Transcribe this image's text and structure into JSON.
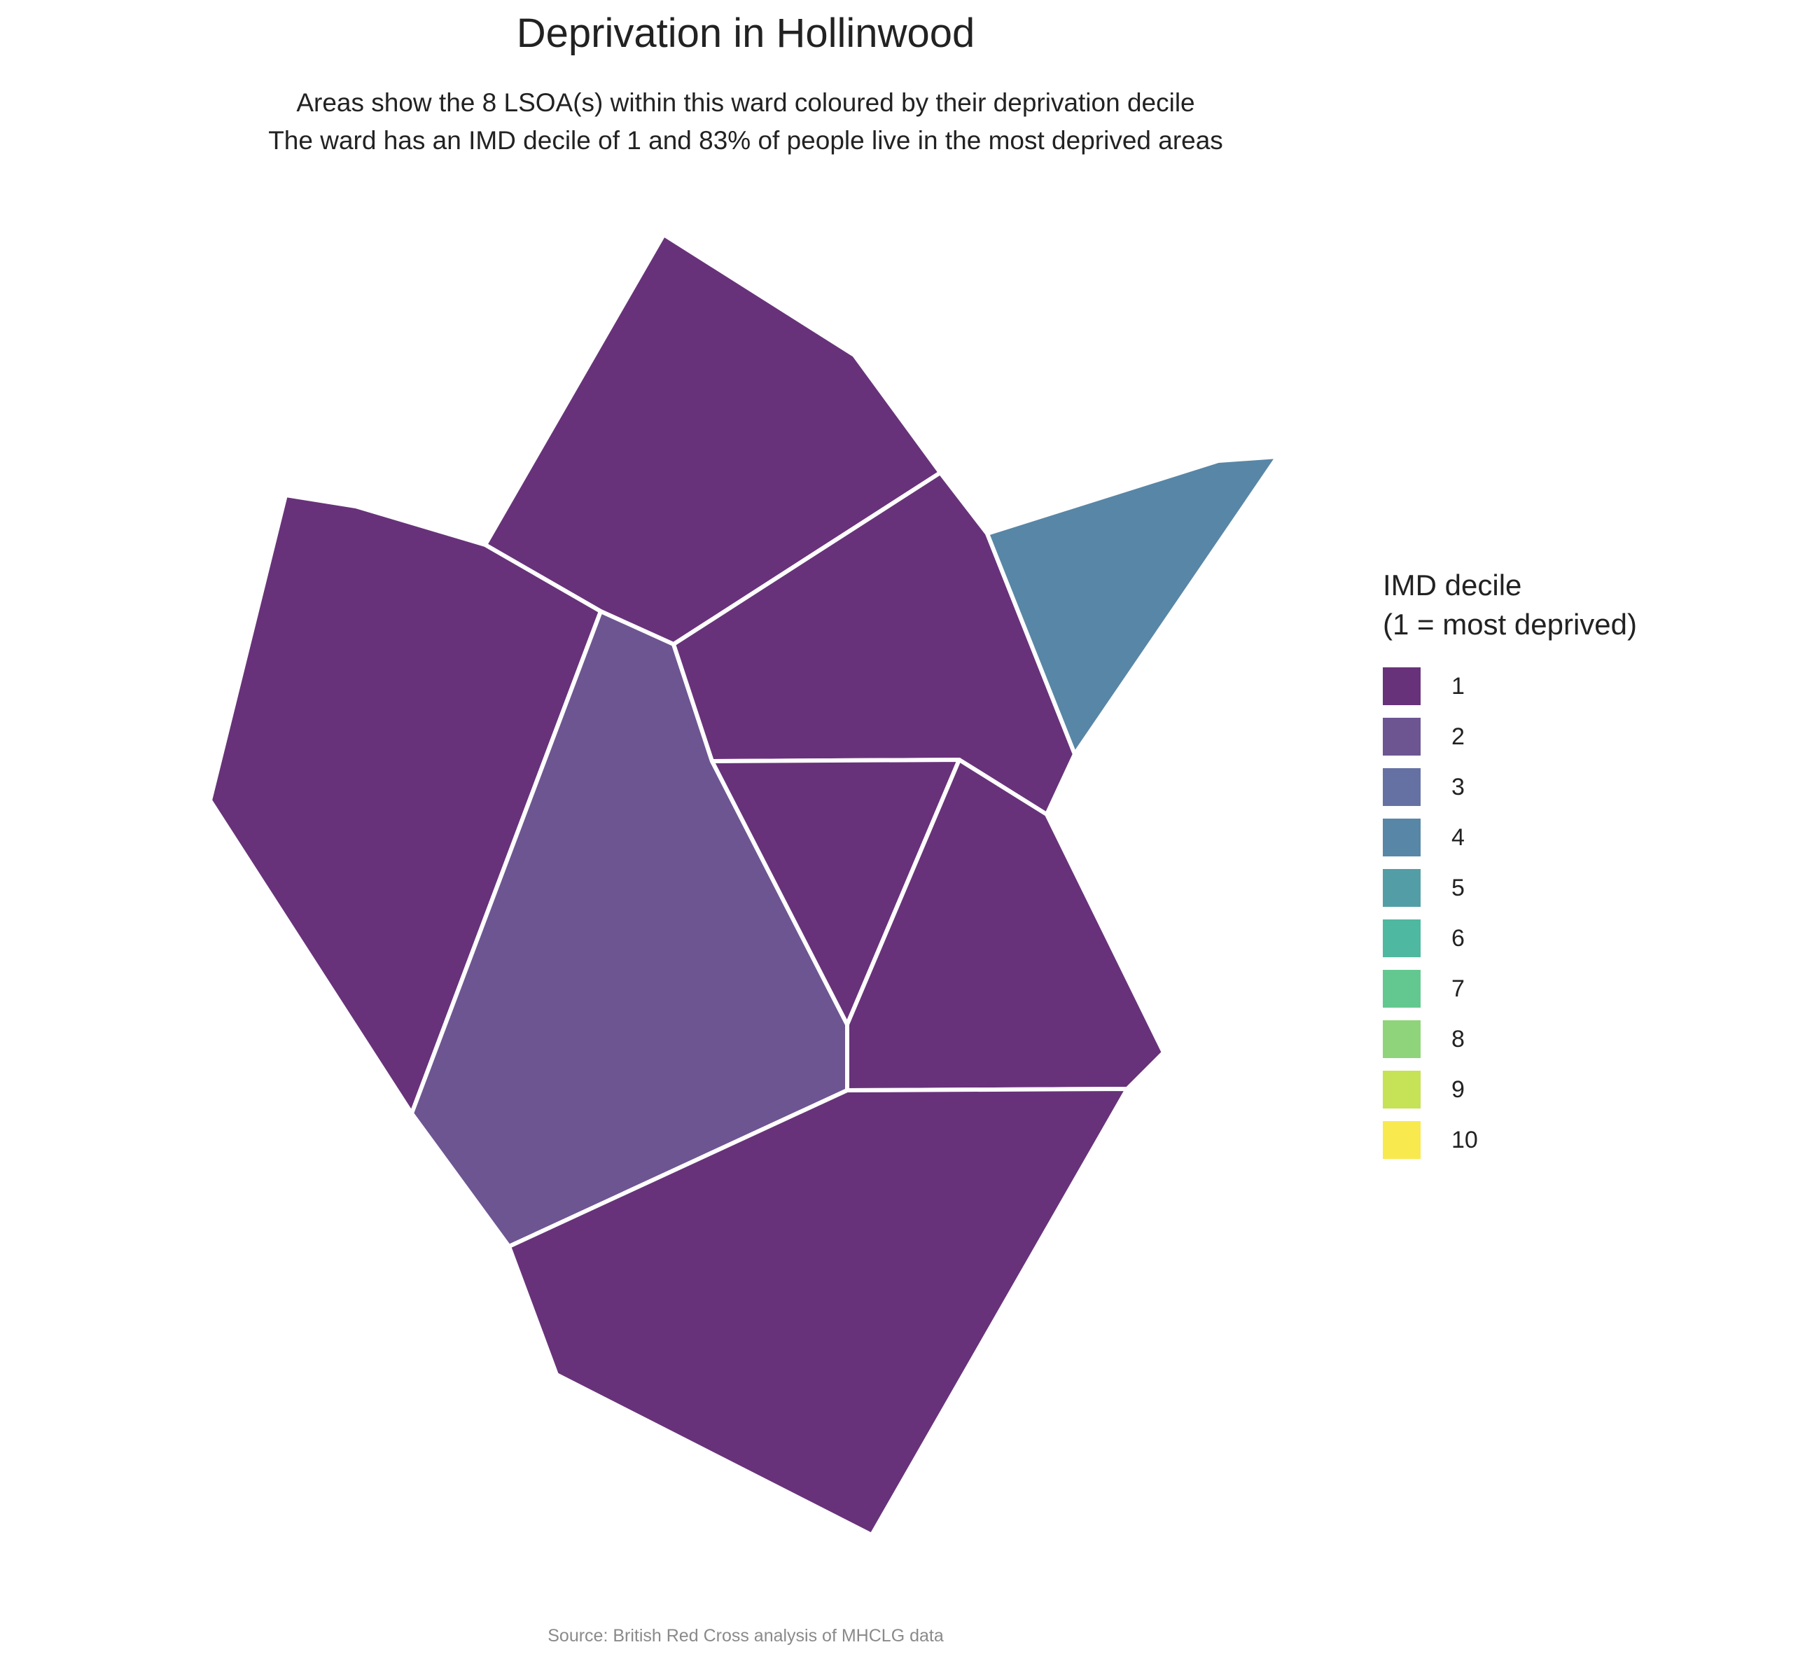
{
  "title": "Deprivation in Hollinwood",
  "subtitle": {
    "line1": "Areas show the 8 LSOA(s) within this ward coloured by their deprivation decile",
    "line2": "The ward has an IMD decile of 1 and 83% of people live in the most deprived areas"
  },
  "legend": {
    "title_line1": "IMD decile",
    "title_line2": "(1 = most deprived)",
    "items": [
      {
        "label": "1",
        "color": "#68327a"
      },
      {
        "label": "2",
        "color": "#6d5592"
      },
      {
        "label": "3",
        "color": "#6671a3"
      },
      {
        "label": "4",
        "color": "#5886a6"
      },
      {
        "label": "5",
        "color": "#539ea6"
      },
      {
        "label": "6",
        "color": "#4fb8a0"
      },
      {
        "label": "7",
        "color": "#63c890"
      },
      {
        "label": "8",
        "color": "#8fd47a"
      },
      {
        "label": "9",
        "color": "#c6e256"
      },
      {
        "label": "10",
        "color": "#f8e94f"
      }
    ]
  },
  "map_data": {
    "ward": "Hollinwood",
    "lsoa_count": 8,
    "ward_imd_decile": 1,
    "percent_most_deprived": 83,
    "areas": [
      {
        "id": "north",
        "decile": 1
      },
      {
        "id": "west",
        "decile": 1
      },
      {
        "id": "centre-west",
        "decile": 2
      },
      {
        "id": "north-east",
        "decile": 1
      },
      {
        "id": "far-east",
        "decile": 4
      },
      {
        "id": "centre-triangle",
        "decile": 1
      },
      {
        "id": "east",
        "decile": 1
      },
      {
        "id": "south",
        "decile": 1
      }
    ]
  },
  "caption": "Source: British Red Cross analysis of MHCLG data"
}
